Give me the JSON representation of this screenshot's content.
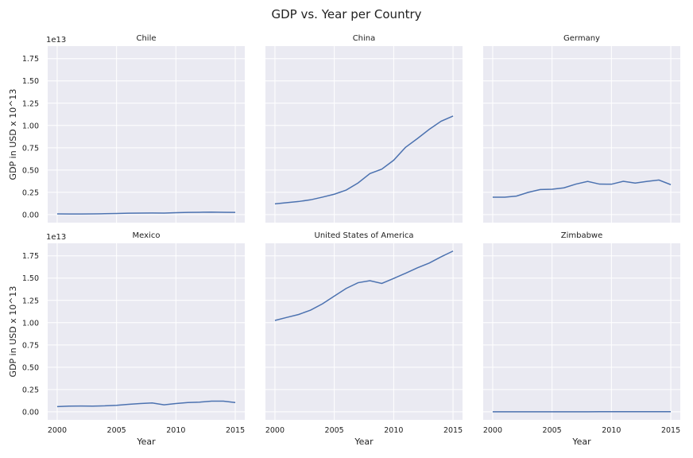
{
  "title": "GDP vs. Year per Country",
  "chart_data": {
    "type": "line",
    "layout": "small-multiples 2x3, shared axes",
    "xlabel": "Year",
    "ylabel": "GDP in USD x 10^13",
    "y_offset_label": "1e13",
    "x_ticks": [
      2000,
      2005,
      2010,
      2015
    ],
    "y_ticks": [
      "0.00",
      "0.25",
      "0.50",
      "0.75",
      "1.00",
      "1.25",
      "1.50",
      "1.75"
    ],
    "xlim": [
      1999.2,
      2015.8
    ],
    "ylim": [
      -0.09,
      1.89
    ],
    "grid": true,
    "x": [
      2000,
      2001,
      2002,
      2003,
      2004,
      2005,
      2006,
      2007,
      2008,
      2009,
      2010,
      2011,
      2012,
      2013,
      2014,
      2015
    ],
    "panels": [
      {
        "name": "Chile",
        "values": [
          0.0078,
          0.0071,
          0.007,
          0.0076,
          0.01,
          0.0123,
          0.0155,
          0.0173,
          0.018,
          0.0172,
          0.0218,
          0.0252,
          0.0265,
          0.0278,
          0.0261,
          0.0243
        ]
      },
      {
        "name": "China",
        "values": [
          0.121,
          0.134,
          0.147,
          0.166,
          0.196,
          0.229,
          0.275,
          0.355,
          0.46,
          0.51,
          0.61,
          0.755,
          0.853,
          0.957,
          1.048,
          1.106
        ]
      },
      {
        "name": "Germany",
        "values": [
          0.195,
          0.195,
          0.208,
          0.25,
          0.281,
          0.285,
          0.3,
          0.342,
          0.373,
          0.342,
          0.341,
          0.374,
          0.354,
          0.373,
          0.388,
          0.336
        ]
      },
      {
        "name": "Mexico",
        "values": [
          0.0584,
          0.0643,
          0.0655,
          0.0638,
          0.067,
          0.0733,
          0.0841,
          0.093,
          0.0993,
          0.0782,
          0.0925,
          0.104,
          0.109,
          0.12,
          0.12,
          0.104
        ]
      },
      {
        "name": "United States of America",
        "values": [
          1.025,
          1.059,
          1.092,
          1.14,
          1.211,
          1.298,
          1.384,
          1.448,
          1.471,
          1.44,
          1.496,
          1.554,
          1.615,
          1.669,
          1.739,
          1.803
        ]
      },
      {
        "name": "Zimbabwe",
        "values": [
          0.00067,
          0.00068,
          0.00063,
          0.00057,
          0.00055,
          0.00058,
          0.00054,
          0.00053,
          0.00044,
          0.00084,
          0.00099,
          0.0012,
          0.0014,
          0.0015,
          0.0016,
          0.0016
        ]
      }
    ]
  }
}
